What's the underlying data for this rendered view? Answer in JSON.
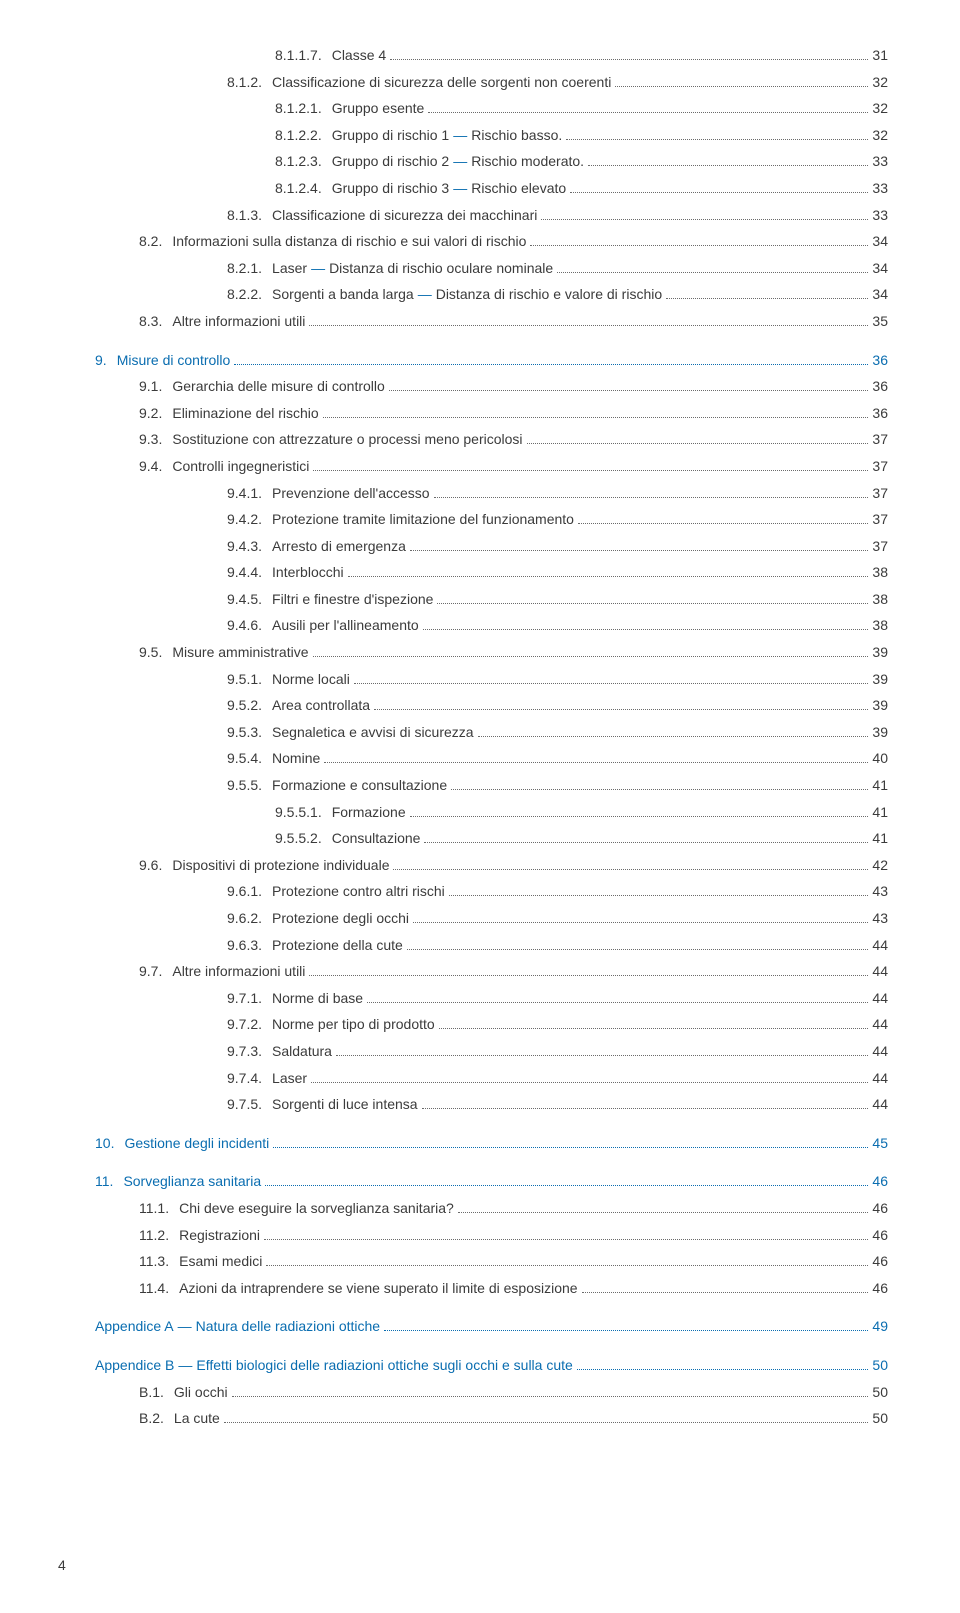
{
  "colors": {
    "text": "#3b3b3b",
    "accent": "#0a6db0",
    "background": "#ffffff",
    "dots": "#6b6b6b"
  },
  "typography": {
    "font_family": "Segoe UI, Myriad Pro, Arial, sans-serif",
    "font_size_pt": 11,
    "line_height": 1.9
  },
  "page_number": "4",
  "toc": [
    {
      "level": 5,
      "num": "8.1.1.7.",
      "label": "Classe 4",
      "page": "31"
    },
    {
      "level": 4,
      "num": "8.1.2.",
      "label": "Classificazione di sicurezza delle sorgenti non coerenti",
      "page": "32"
    },
    {
      "level": 5,
      "num": "8.1.2.1.",
      "label": "Gruppo esente",
      "page": "32"
    },
    {
      "level": 5,
      "num": "8.1.2.2.",
      "label": "Gruppo di rischio 1",
      "dash_label": "Rischio basso.",
      "page": "32"
    },
    {
      "level": 5,
      "num": "8.1.2.3.",
      "label": "Gruppo di rischio 2",
      "dash_label": "Rischio moderato.",
      "page": "33"
    },
    {
      "level": 5,
      "num": "8.1.2.4.",
      "label": "Gruppo di rischio 3",
      "dash_label": "Rischio elevato",
      "page": "33"
    },
    {
      "level": 4,
      "num": "8.1.3.",
      "label": "Classificazione di sicurezza dei macchinari",
      "page": "33"
    },
    {
      "level": 2,
      "num": "8.2.",
      "label": "Informazioni sulla distanza di rischio e sui valori di rischio",
      "page": "34"
    },
    {
      "level": 4,
      "num": "8.2.1.",
      "label": "Laser",
      "dash_label": "Distanza di rischio oculare nominale",
      "page": "34"
    },
    {
      "level": 4,
      "num": "8.2.2.",
      "label": "Sorgenti a banda larga",
      "dash_label": "Distanza di rischio e valore di rischio",
      "page": "34"
    },
    {
      "level": 2,
      "num": "8.3.",
      "label": "Altre informazioni utili",
      "page": "35"
    },
    {
      "gap": true
    },
    {
      "level": 1,
      "num": "9.",
      "label": "Misure di controllo",
      "page": "36",
      "section": true
    },
    {
      "level": 2,
      "num": "9.1.",
      "label": "Gerarchia delle misure di controllo",
      "page": "36"
    },
    {
      "level": 2,
      "num": "9.2.",
      "label": "Eliminazione del rischio",
      "page": "36"
    },
    {
      "level": 2,
      "num": "9.3.",
      "label": "Sostituzione con attrezzature o processi meno pericolosi",
      "page": "37"
    },
    {
      "level": 2,
      "num": "9.4.",
      "label": "Controlli ingegneristici",
      "page": "37"
    },
    {
      "level": 4,
      "num": "9.4.1.",
      "label": "Prevenzione dell'accesso",
      "page": "37"
    },
    {
      "level": 4,
      "num": "9.4.2.",
      "label": "Protezione tramite limitazione del funzionamento",
      "page": "37"
    },
    {
      "level": 4,
      "num": "9.4.3.",
      "label": "Arresto di emergenza",
      "page": "37"
    },
    {
      "level": 4,
      "num": "9.4.4.",
      "label": "Interblocchi",
      "page": "38"
    },
    {
      "level": 4,
      "num": "9.4.5.",
      "label": "Filtri e finestre d'ispezione",
      "page": "38"
    },
    {
      "level": 4,
      "num": "9.4.6.",
      "label": "Ausili per l'allineamento",
      "page": "38"
    },
    {
      "level": 2,
      "num": "9.5.",
      "label": "Misure amministrative",
      "page": "39"
    },
    {
      "level": 4,
      "num": "9.5.1.",
      "label": "Norme locali",
      "page": "39"
    },
    {
      "level": 4,
      "num": "9.5.2.",
      "label": "Area controllata",
      "page": "39"
    },
    {
      "level": 4,
      "num": "9.5.3.",
      "label": "Segnaletica e avvisi di sicurezza",
      "page": "39"
    },
    {
      "level": 4,
      "num": "9.5.4.",
      "label": "Nomine",
      "page": "40"
    },
    {
      "level": 4,
      "num": "9.5.5.",
      "label": "Formazione e consultazione",
      "page": "41"
    },
    {
      "level": 5,
      "num": "9.5.5.1.",
      "label": "Formazione",
      "page": "41"
    },
    {
      "level": 5,
      "num": "9.5.5.2.",
      "label": "Consultazione",
      "page": "41"
    },
    {
      "level": 2,
      "num": "9.6.",
      "label": "Dispositivi di protezione individuale",
      "page": "42"
    },
    {
      "level": 4,
      "num": "9.6.1.",
      "label": "Protezione contro altri rischi",
      "page": "43"
    },
    {
      "level": 4,
      "num": "9.6.2.",
      "label": "Protezione degli occhi",
      "page": "43"
    },
    {
      "level": 4,
      "num": "9.6.3.",
      "label": "Protezione della cute",
      "page": "44"
    },
    {
      "level": 2,
      "num": "9.7.",
      "label": "Altre informazioni utili",
      "page": "44"
    },
    {
      "level": 4,
      "num": "9.7.1.",
      "label": "Norme di base",
      "page": "44"
    },
    {
      "level": 4,
      "num": "9.7.2.",
      "label": "Norme per tipo di prodotto",
      "page": "44"
    },
    {
      "level": 4,
      "num": "9.7.3.",
      "label": "Saldatura",
      "page": "44"
    },
    {
      "level": 4,
      "num": "9.7.4.",
      "label": "Laser",
      "page": "44"
    },
    {
      "level": 4,
      "num": "9.7.5.",
      "label": "Sorgenti di luce intensa",
      "page": "44"
    },
    {
      "gap": true
    },
    {
      "level": 1,
      "num": "10.",
      "label": "Gestione degli incidenti",
      "page": "45",
      "section": true
    },
    {
      "gap": true
    },
    {
      "level": 1,
      "num": "11.",
      "label": "Sorveglianza sanitaria",
      "page": "46",
      "section": true
    },
    {
      "level": 2,
      "num": "11.1.",
      "label": "Chi deve eseguire la sorveglianza sanitaria?",
      "page": "46"
    },
    {
      "level": 2,
      "num": "11.2.",
      "label": "Registrazioni",
      "page": "46"
    },
    {
      "level": 2,
      "num": "11.3.",
      "label": "Esami medici",
      "page": "46"
    },
    {
      "level": 2,
      "num": "11.4.",
      "label": "Azioni da intraprendere se viene superato il limite di esposizione",
      "page": "46"
    },
    {
      "gap": true
    },
    {
      "level": 1,
      "num": "",
      "label": "Appendice A",
      "dash_label": "Natura delle radiazioni ottiche",
      "page": "49",
      "section": true
    },
    {
      "gap": true
    },
    {
      "level": 1,
      "num": "",
      "label": "Appendice B",
      "dash_label": "Effetti biologici delle radiazioni ottiche sugli occhi e sulla cute",
      "page": "50",
      "section": true
    },
    {
      "level": 2,
      "num": "B.1.",
      "label": "Gli occhi",
      "page": "50"
    },
    {
      "level": 2,
      "num": "B.2.",
      "label": "La cute",
      "page": "50"
    }
  ]
}
